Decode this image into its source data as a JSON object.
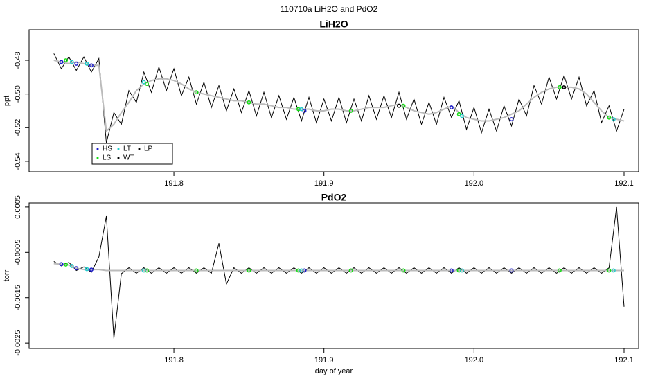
{
  "title": "110710a   LiH2O and PdO2",
  "chart_data": [
    {
      "type": "line",
      "title": "LiH2O",
      "ylabel": "ppt",
      "x": [
        191.72,
        191.725,
        191.73,
        191.735,
        191.74,
        191.745,
        191.75,
        191.755,
        191.76,
        191.765,
        191.77,
        191.775,
        191.78,
        191.785,
        191.79,
        191.795,
        191.8,
        191.805,
        191.81,
        191.815,
        191.82,
        191.825,
        191.83,
        191.835,
        191.84,
        191.845,
        191.85,
        191.855,
        191.86,
        191.865,
        191.87,
        191.875,
        191.88,
        191.885,
        191.89,
        191.895,
        191.9,
        191.905,
        191.91,
        191.915,
        191.92,
        191.925,
        191.93,
        191.935,
        191.94,
        191.945,
        191.95,
        191.955,
        191.96,
        191.965,
        191.97,
        191.975,
        191.98,
        191.985,
        191.99,
        191.995,
        192,
        192.005,
        192.01,
        192.015,
        192.02,
        192.025,
        192.03,
        192.035,
        192.04,
        192.045,
        192.05,
        192.055,
        192.06,
        192.065,
        192.07,
        192.075,
        192.08,
        192.085,
        192.09,
        192.095,
        192.1
      ],
      "series": [
        {
          "color": "#000000",
          "values": [
            -0.476,
            -0.485,
            -0.478,
            -0.486,
            -0.478,
            -0.487,
            -0.479,
            -0.529,
            -0.511,
            -0.518,
            -0.498,
            -0.505,
            -0.487,
            -0.499,
            -0.484,
            -0.498,
            -0.485,
            -0.501,
            -0.49,
            -0.506,
            -0.493,
            -0.508,
            -0.495,
            -0.51,
            -0.497,
            -0.511,
            -0.498,
            -0.513,
            -0.499,
            -0.514,
            -0.501,
            -0.515,
            -0.502,
            -0.516,
            -0.502,
            -0.517,
            -0.503,
            -0.516,
            -0.502,
            -0.517,
            -0.503,
            -0.516,
            -0.501,
            -0.515,
            -0.501,
            -0.514,
            -0.499,
            -0.515,
            -0.503,
            -0.518,
            -0.505,
            -0.518,
            -0.502,
            -0.514,
            -0.504,
            -0.521,
            -0.508,
            -0.523,
            -0.509,
            -0.522,
            -0.507,
            -0.519,
            -0.503,
            -0.513,
            -0.495,
            -0.506,
            -0.49,
            -0.503,
            -0.489,
            -0.503,
            -0.49,
            -0.507,
            -0.498,
            -0.517,
            -0.507,
            -0.522,
            -0.509
          ]
        },
        {
          "color": "#bbbbbb",
          "values": [
            -0.48,
            -0.481,
            -0.482,
            -0.481,
            -0.482,
            -0.483,
            -0.483,
            -0.522,
            -0.518,
            -0.511,
            -0.505,
            -0.498,
            -0.494,
            -0.492,
            -0.491,
            -0.491,
            -0.492,
            -0.494,
            -0.497,
            -0.499,
            -0.5,
            -0.501,
            -0.502,
            -0.503,
            -0.504,
            -0.504,
            -0.505,
            -0.506,
            -0.506,
            -0.507,
            -0.508,
            -0.508,
            -0.509,
            -0.509,
            -0.509,
            -0.51,
            -0.51,
            -0.509,
            -0.509,
            -0.51,
            -0.51,
            -0.509,
            -0.508,
            -0.508,
            -0.508,
            -0.507,
            -0.506,
            -0.508,
            -0.51,
            -0.511,
            -0.512,
            -0.511,
            -0.509,
            -0.507,
            -0.511,
            -0.514,
            -0.515,
            -0.516,
            -0.516,
            -0.515,
            -0.514,
            -0.512,
            -0.51,
            -0.506,
            -0.502,
            -0.499,
            -0.497,
            -0.496,
            -0.496,
            -0.496,
            -0.497,
            -0.5,
            -0.505,
            -0.51,
            -0.514,
            -0.515,
            -0.516
          ]
        }
      ],
      "markers": [
        {
          "name": "HS",
          "color": "#1a1acc",
          "x": [
            191.725,
            191.735,
            191.745,
            191.887,
            191.985,
            192.025
          ],
          "values": [
            -0.481,
            -0.482,
            -0.483,
            -0.51,
            -0.508,
            -0.515
          ]
        },
        {
          "name": "LS",
          "color": "#11dd11",
          "x": [
            191.728,
            191.782,
            191.815,
            191.85,
            191.883,
            191.918,
            191.953,
            191.99,
            192.057,
            192.09
          ],
          "values": [
            -0.48,
            -0.494,
            -0.499,
            -0.505,
            -0.509,
            -0.51,
            -0.507,
            -0.512,
            -0.496,
            -0.514
          ]
        },
        {
          "name": "LT",
          "color": "#22cccc",
          "x": [
            191.732,
            191.742,
            191.78,
            191.885,
            191.992,
            192.093
          ],
          "values": [
            -0.481,
            -0.482,
            -0.493,
            -0.509,
            -0.513,
            -0.515
          ]
        },
        {
          "name": "WT",
          "color": "#000000",
          "x": [
            191.95
          ],
          "values": [
            -0.507
          ]
        },
        {
          "name": "LP",
          "color": "#000000",
          "x": [
            192.06
          ],
          "values": [
            -0.496
          ]
        }
      ],
      "legend": "bottom-left",
      "xlim": [
        191.7035,
        192.1097
      ],
      "ylim": [
        -0.5462,
        -0.4619
      ],
      "xticks": [
        191.8,
        191.9,
        {
          "value": 192,
          "label": "192.0"
        },
        192.1
      ],
      "yticks": [
        -0.54,
        -0.52,
        {
          "value": -0.5,
          "label": "-0.50"
        },
        -0.48
      ]
    },
    {
      "type": "line",
      "title": "PdO2",
      "ylabel": "torr",
      "xlabel": "day of year",
      "x": [
        191.72,
        191.725,
        191.73,
        191.735,
        191.74,
        191.745,
        191.75,
        191.755,
        191.76,
        191.765,
        191.77,
        191.775,
        191.78,
        191.785,
        191.79,
        191.795,
        191.8,
        191.805,
        191.81,
        191.815,
        191.82,
        191.825,
        191.83,
        191.835,
        191.84,
        191.845,
        191.85,
        191.855,
        191.86,
        191.865,
        191.87,
        191.875,
        191.88,
        191.885,
        191.89,
        191.895,
        191.9,
        191.905,
        191.91,
        191.915,
        191.92,
        191.925,
        191.93,
        191.935,
        191.94,
        191.945,
        191.95,
        191.955,
        191.96,
        191.965,
        191.97,
        191.975,
        191.98,
        191.985,
        191.99,
        191.995,
        192,
        192.005,
        192.01,
        192.015,
        192.02,
        192.025,
        192.03,
        192.035,
        192.04,
        192.045,
        192.05,
        192.055,
        192.06,
        192.065,
        192.07,
        192.075,
        192.08,
        192.085,
        192.09,
        192.095,
        192.1
      ],
      "series": [
        {
          "color": "#000000",
          "values": [
            -0.0007,
            -0.0008,
            -0.00072,
            -0.0009,
            -0.00082,
            -0.00094,
            -0.0006,
            0.0003,
            -0.0024,
            -0.00097,
            -0.00084,
            -0.00096,
            -0.00084,
            -0.00096,
            -0.00084,
            -0.00096,
            -0.00084,
            -0.00096,
            -0.00084,
            -0.00096,
            -0.00084,
            -0.00096,
            -0.0003,
            -0.0012,
            -0.00084,
            -0.00096,
            -0.00084,
            -0.00096,
            -0.00084,
            -0.00096,
            -0.00084,
            -0.00096,
            -0.00084,
            -0.00096,
            -0.00084,
            -0.00096,
            -0.00084,
            -0.00096,
            -0.00084,
            -0.00096,
            -0.00084,
            -0.00096,
            -0.00084,
            -0.00096,
            -0.00084,
            -0.00096,
            -0.00084,
            -0.00096,
            -0.00084,
            -0.00096,
            -0.00084,
            -0.00096,
            -0.00084,
            -0.00096,
            -0.00084,
            -0.00096,
            -0.00084,
            -0.00096,
            -0.00084,
            -0.00096,
            -0.00084,
            -0.00096,
            -0.00084,
            -0.00096,
            -0.00084,
            -0.00096,
            -0.00084,
            -0.00096,
            -0.00084,
            -0.00096,
            -0.00084,
            -0.00096,
            -0.00084,
            -0.00096,
            -0.00084,
            0.0005,
            -0.0017
          ]
        },
        {
          "color": "#bbbbbb",
          "values": [
            -0.00075,
            -0.00076,
            -0.00078,
            -0.00085,
            -0.00088,
            -0.00088,
            -0.00088,
            -0.0009,
            -0.0009,
            -0.0009,
            -0.0009,
            -0.0009,
            -0.0009,
            -0.0009,
            -0.0009,
            -0.0009,
            -0.0009,
            -0.0009,
            -0.0009,
            -0.0009,
            -0.0009,
            -0.0009,
            -0.0009,
            -0.0009,
            -0.0009,
            -0.0009,
            -0.0009,
            -0.0009,
            -0.0009,
            -0.0009,
            -0.0009,
            -0.0009,
            -0.0009,
            -0.0009,
            -0.0009,
            -0.0009,
            -0.0009,
            -0.0009,
            -0.0009,
            -0.0009,
            -0.0009,
            -0.0009,
            -0.0009,
            -0.0009,
            -0.0009,
            -0.0009,
            -0.0009,
            -0.0009,
            -0.0009,
            -0.0009,
            -0.0009,
            -0.0009,
            -0.0009,
            -0.0009,
            -0.0009,
            -0.0009,
            -0.0009,
            -0.0009,
            -0.0009,
            -0.0009,
            -0.0009,
            -0.0009,
            -0.0009,
            -0.0009,
            -0.0009,
            -0.0009,
            -0.0009,
            -0.0009,
            -0.0009,
            -0.0009,
            -0.0009,
            -0.0009,
            -0.0009,
            -0.0009,
            -0.0009,
            -0.0009,
            -0.0009
          ]
        }
      ],
      "markers": [
        {
          "color": "#1a1acc",
          "x": [
            191.725,
            191.735,
            191.745,
            191.887,
            191.985,
            192.025
          ],
          "values": [
            -0.00076,
            -0.00085,
            -0.00088,
            -0.0009,
            -0.0009,
            -0.0009
          ]
        },
        {
          "color": "#11dd11",
          "x": [
            191.728,
            191.782,
            191.815,
            191.85,
            191.883,
            191.918,
            191.953,
            191.99,
            192.057,
            192.09
          ],
          "values": [
            -0.00077,
            -0.0009,
            -0.0009,
            -0.0009,
            -0.0009,
            -0.0009,
            -0.0009,
            -0.0009,
            -0.0009,
            -0.0009
          ]
        },
        {
          "color": "#22cccc",
          "x": [
            191.732,
            191.742,
            191.78,
            191.885,
            191.992,
            192.093
          ],
          "values": [
            -0.0008,
            -0.00087,
            -0.0009,
            -0.0009,
            -0.0009,
            -0.0009
          ]
        }
      ],
      "xlim": [
        191.7035,
        192.1097
      ],
      "ylim": [
        -0.00262,
        0.00059
      ],
      "xticks": [
        191.8,
        191.9,
        {
          "value": 192,
          "label": "192.0"
        },
        192.1
      ],
      "yticks": [
        -0.0025,
        -0.0015,
        -0.0005,
        0.0005
      ]
    }
  ]
}
